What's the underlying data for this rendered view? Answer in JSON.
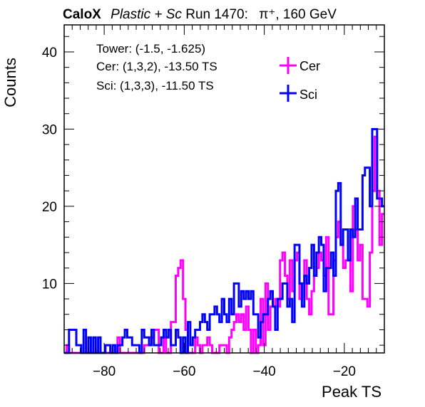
{
  "chart_data": {
    "type": "histogram",
    "title": {
      "bold": "CaloX",
      "italic": "Plastic + Sc",
      "run": "Run 1470:",
      "particle": "π⁺, 160 GeV"
    },
    "xlabel": "Peak TS",
    "ylabel": "Counts",
    "xlim": [
      -90,
      -10
    ],
    "ylim": [
      1,
      43.5
    ],
    "xticks": [
      -80,
      -60,
      -40,
      -20
    ],
    "xtick_labels": [
      "−80",
      "−60",
      "−40",
      "−20"
    ],
    "yticks": [
      10,
      20,
      30,
      40
    ],
    "ytick_labels": [
      "10",
      "20",
      "30",
      "40"
    ],
    "bin_width": 1,
    "info": [
      "Tower: (-1.5, -1.625)",
      "Cer: (1,3,2), -13.50 TS",
      "Sci: (1,3,3), -11.50 TS"
    ],
    "legend_position": "top-right",
    "series": [
      {
        "name": "Cer",
        "color": "#ff00ff",
        "x_start": -90,
        "values": [
          0,
          2,
          0,
          0,
          0,
          0,
          0,
          1,
          0,
          0,
          0,
          0,
          1,
          1,
          0,
          0,
          0,
          0,
          1,
          0,
          1,
          0,
          3,
          1,
          0,
          1,
          0,
          0,
          0,
          0,
          1,
          1,
          1,
          2,
          2,
          3,
          3,
          4,
          4,
          1,
          0,
          3,
          0,
          0,
          5,
          5,
          11,
          12,
          13,
          8,
          4,
          0,
          1,
          1,
          3,
          2,
          1,
          2,
          2,
          3,
          2,
          1,
          1,
          1,
          2,
          2,
          2,
          1,
          3,
          4,
          5,
          6,
          5,
          6,
          4,
          7,
          4,
          0,
          4,
          1,
          2,
          8,
          2,
          10,
          4,
          7,
          7,
          8,
          7,
          13,
          14,
          11,
          8,
          13,
          9,
          13,
          14,
          8,
          10,
          13,
          8,
          6,
          9,
          11,
          12,
          14,
          13,
          11,
          16,
          6,
          6,
          13,
          16,
          18,
          15,
          12,
          13,
          13,
          9,
          20,
          17,
          13,
          15,
          8,
          8,
          7,
          14,
          22,
          29,
          22,
          15,
          19
        ]
      },
      {
        "name": "Sci",
        "color": "#0000ff",
        "x_start": -90,
        "values": [
          1,
          1,
          4,
          4,
          4,
          2,
          2,
          1,
          4,
          1,
          3,
          1,
          3,
          0,
          3,
          0,
          0,
          2,
          2,
          0,
          2,
          1,
          2,
          2,
          3,
          4,
          3,
          3,
          2,
          2,
          2,
          1,
          4,
          3,
          3,
          2,
          4,
          2,
          2,
          2,
          3,
          4,
          3,
          4,
          2,
          2,
          4,
          3,
          1,
          3,
          1,
          5,
          2,
          3,
          4,
          4,
          5,
          6,
          5,
          4,
          6,
          6,
          7,
          6,
          5,
          8,
          6,
          5,
          8,
          6,
          10,
          10,
          7,
          9,
          8,
          9,
          8,
          9,
          6,
          6,
          3,
          5,
          6,
          6,
          8,
          9,
          7,
          4,
          8,
          8,
          10,
          10,
          7,
          8,
          5,
          15,
          15,
          10,
          7,
          11,
          10,
          12,
          15,
          11,
          14,
          16,
          15,
          9,
          12,
          12,
          14,
          11,
          22,
          23,
          15,
          17,
          17,
          13,
          17,
          16,
          21,
          17,
          17,
          24,
          25,
          25,
          20,
          30,
          30,
          21,
          21,
          20
        ]
      }
    ]
  }
}
